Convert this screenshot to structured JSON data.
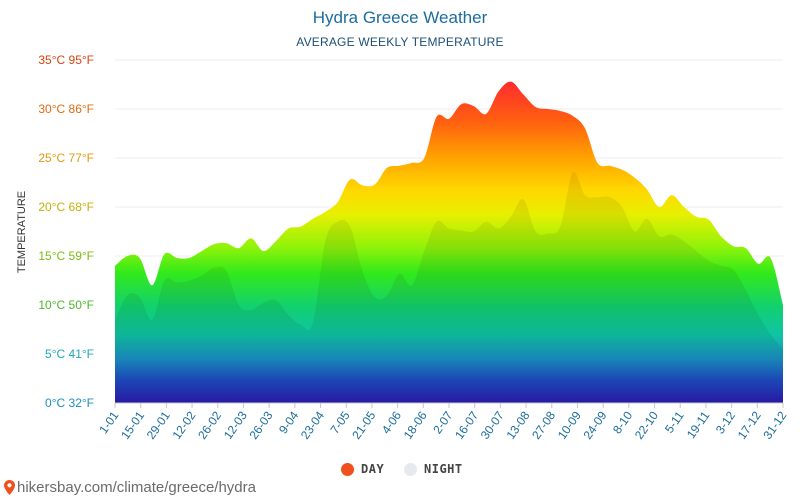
{
  "header": {
    "title": "Hydra Greece Weather",
    "subtitle": "AVERAGE WEEKLY TEMPERATURE"
  },
  "footer": {
    "source": "hikersbay.com/climate/greece/hydra",
    "icon": "map-pin-icon"
  },
  "legend": [
    {
      "label": "DAY",
      "color": "#f0501e"
    },
    {
      "label": "NIGHT",
      "color": "#e6eaef"
    }
  ],
  "chart_data": {
    "type": "area",
    "ylabel": "TEMPERATURE",
    "ylim": [
      0,
      35
    ],
    "grid": true,
    "legend_position": "bottom",
    "y_ticks": [
      {
        "value": 0,
        "label": "0°C 32°F",
        "color": "#1b8fc0"
      },
      {
        "value": 5,
        "label": "5°C 41°F",
        "color": "#1ea8b8"
      },
      {
        "value": 10,
        "label": "10°C 50°F",
        "color": "#4cb82a"
      },
      {
        "value": 15,
        "label": "15°C 59°F",
        "color": "#7cbd12"
      },
      {
        "value": 20,
        "label": "20°C 68°F",
        "color": "#c4b10a"
      },
      {
        "value": 25,
        "label": "25°C 77°F",
        "color": "#e29a12"
      },
      {
        "value": 30,
        "label": "30°C 86°F",
        "color": "#df6a12"
      },
      {
        "value": 35,
        "label": "35°C 95°F",
        "color": "#d9420f"
      }
    ],
    "x_labels": [
      "1-01",
      "15-01",
      "29-01",
      "12-02",
      "26-02",
      "12-03",
      "26-03",
      "9-04",
      "23-04",
      "7-05",
      "21-05",
      "4-06",
      "18-06",
      "2-07",
      "16-07",
      "30-07",
      "13-08",
      "27-08",
      "10-09",
      "24-09",
      "8-10",
      "22-10",
      "5-11",
      "19-11",
      "3-12",
      "17-12",
      "31-12"
    ],
    "series": [
      {
        "name": "DAY",
        "values": [
          14.0,
          15.0,
          14.8,
          12.0,
          15.2,
          14.8,
          14.8,
          15.5,
          16.2,
          16.3,
          15.8,
          16.8,
          15.5,
          16.5,
          17.8,
          18.0,
          18.8,
          19.5,
          20.5,
          22.8,
          22.2,
          22.3,
          24.0,
          24.2,
          24.5,
          25.0,
          29.2,
          29.0,
          30.5,
          30.3,
          29.5,
          31.8,
          32.8,
          31.5,
          30.2,
          30.0,
          29.8,
          29.3,
          28.0,
          24.5,
          24.2,
          23.8,
          23.0,
          21.8,
          20.0,
          21.2,
          20.0,
          19.0,
          18.7,
          17.0,
          16.0,
          15.8,
          14.2,
          14.8,
          10.0
        ]
      },
      {
        "name": "NIGHT",
        "values": [
          8.5,
          11.0,
          10.8,
          8.5,
          12.5,
          12.3,
          12.5,
          13.0,
          13.8,
          13.5,
          10.0,
          9.5,
          10.2,
          10.5,
          9.0,
          8.0,
          8.2,
          16.5,
          18.5,
          18.0,
          13.5,
          10.8,
          11.0,
          13.2,
          12.0,
          15.5,
          18.5,
          17.8,
          17.6,
          17.5,
          18.5,
          17.8,
          19.0,
          20.8,
          17.5,
          17.3,
          18.0,
          23.5,
          21.2,
          21.0,
          21.0,
          20.0,
          17.5,
          18.8,
          17.0,
          17.2,
          16.5,
          15.5,
          14.5,
          14.0,
          13.6,
          11.5,
          9.0,
          7.0,
          5.5
        ]
      }
    ]
  }
}
